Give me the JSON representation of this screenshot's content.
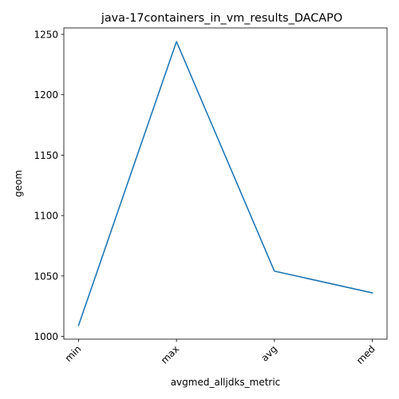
{
  "chart_data": {
    "type": "line",
    "title": "java-17containers_in_vm_results_DACAPO",
    "xlabel": "avgmed_alljdks_metric",
    "ylabel": "geom",
    "categories": [
      "min",
      "max",
      "avg",
      "med"
    ],
    "series": [
      {
        "values": [
          1009,
          1244,
          1054,
          1036
        ],
        "color": "#1f77b4"
      }
    ],
    "yticks": [
      1000,
      1050,
      1100,
      1150,
      1200,
      1250
    ],
    "ylim": [
      997.7,
      1255.3
    ],
    "grid": false,
    "legend": "none"
  }
}
